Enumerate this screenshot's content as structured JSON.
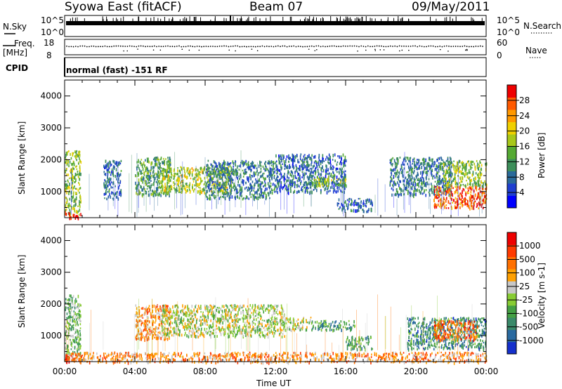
{
  "header": {
    "station": "Syowa East (fitACF)",
    "beam": "Beam 07",
    "date": "09/May/2011"
  },
  "top_panels": {
    "nsky_label": "N.Sky",
    "nsky_ticks": [
      "10^5",
      "10^0"
    ],
    "nsearch_label": "N.Search",
    "nsearch_ticks": [
      "10^5",
      "10^0"
    ],
    "freq_label_line1": "Freq.",
    "freq_label_line2": "[MHz]",
    "freq_ticks": [
      "18",
      "8"
    ],
    "nave_label": "Nave",
    "nave_ticks": [
      "60",
      "0"
    ],
    "cpid_label": "CPID",
    "cpid_text": "normal (fast) -151 RF"
  },
  "chart_data": [
    {
      "type": "heatmap",
      "title": "",
      "xlabel": "Time UT",
      "ylabel": "Slant Range [km]",
      "x_tick_labels": [
        "00:00",
        "04:00",
        "08:00",
        "12:00",
        "16:00",
        "20:00",
        "00:00"
      ],
      "x_ticks_hours": [
        0,
        4,
        8,
        12,
        16,
        20,
        24
      ],
      "y_tick_labels": [
        "1000",
        "2000",
        "3000",
        "4000"
      ],
      "y_ticks": [
        1000,
        2000,
        3000,
        4000
      ],
      "xlim": [
        0,
        24
      ],
      "ylim": [
        180,
        4500
      ],
      "colorbar_label": "Power [dB]",
      "colorbar_ticks": [
        "28",
        "24",
        "20",
        "16",
        "12",
        "8",
        "4"
      ],
      "colorbar_tick_values": [
        28,
        24,
        20,
        16,
        12,
        8,
        4
      ],
      "colorbar_colors": [
        "#0000ff",
        "#1f3fd0",
        "#2a6a9a",
        "#3d8f5a",
        "#55aa33",
        "#a8c81a",
        "#f0d000",
        "#ff9900",
        "#ff5a00",
        "#ee0000"
      ],
      "echo_regions": [
        {
          "t0": 0.0,
          "t1": 0.9,
          "r0": 300,
          "r1": 2300,
          "level": 0.5
        },
        {
          "t0": 0.0,
          "t1": 0.9,
          "r0": 180,
          "r1": 400,
          "level": 0.95
        },
        {
          "t0": 2.2,
          "t1": 3.2,
          "r0": 800,
          "r1": 2000,
          "level": 0.25
        },
        {
          "t0": 4.0,
          "t1": 6.0,
          "r0": 900,
          "r1": 2100,
          "level": 0.4
        },
        {
          "t0": 5.5,
          "t1": 9.5,
          "r0": 1000,
          "r1": 1800,
          "level": 0.55
        },
        {
          "t0": 8.0,
          "t1": 12.0,
          "r0": 800,
          "r1": 2000,
          "level": 0.3
        },
        {
          "t0": 12.0,
          "t1": 16.0,
          "r0": 1000,
          "r1": 2200,
          "level": 0.25
        },
        {
          "t0": 14.0,
          "t1": 16.0,
          "r0": 1200,
          "r1": 1500,
          "level": 0.5
        },
        {
          "t0": 15.5,
          "t1": 17.5,
          "r0": 400,
          "r1": 800,
          "level": 0.25
        },
        {
          "t0": 18.5,
          "t1": 22.0,
          "r0": 900,
          "r1": 2100,
          "level": 0.3
        },
        {
          "t0": 21.0,
          "t1": 24.0,
          "r0": 500,
          "r1": 1200,
          "level": 0.85
        },
        {
          "t0": 21.5,
          "t1": 24.0,
          "r0": 1200,
          "r1": 2000,
          "level": 0.5
        }
      ]
    },
    {
      "type": "heatmap",
      "title": "",
      "xlabel": "Time UT",
      "ylabel": "Slant Range [km]",
      "x_tick_labels": [
        "00:00",
        "04:00",
        "08:00",
        "12:00",
        "16:00",
        "20:00",
        "00:00"
      ],
      "x_ticks_hours": [
        0,
        4,
        8,
        12,
        16,
        20,
        24
      ],
      "y_tick_labels": [
        "1000",
        "2000",
        "3000",
        "4000"
      ],
      "y_ticks": [
        1000,
        2000,
        3000,
        4000
      ],
      "xlim": [
        0,
        24
      ],
      "ylim": [
        180,
        4500
      ],
      "colorbar_label": "Velocity [m s-1]",
      "colorbar_ticks": [
        "1000",
        "500",
        "100",
        "25",
        "-25",
        "-100",
        "-500",
        "-1000"
      ],
      "colorbar_tick_values": [
        1000,
        500,
        100,
        25,
        -25,
        -100,
        -500,
        -1000
      ],
      "colorbar_colors": [
        "#1530cc",
        "#2a6aa0",
        "#3a8a6a",
        "#44a044",
        "#88cc33",
        "#c8c8c8",
        "#ffa000",
        "#ff7000",
        "#ff3a00",
        "#ee0000"
      ],
      "echo_regions": [
        {
          "t0": 0.0,
          "t1": 0.9,
          "r0": 300,
          "r1": 2300,
          "level": 0.4
        },
        {
          "t0": 0.0,
          "t1": 0.9,
          "r0": 180,
          "r1": 450,
          "level": 0.85
        },
        {
          "t0": 4.0,
          "t1": 6.0,
          "r0": 900,
          "r1": 2000,
          "level": 0.7
        },
        {
          "t0": 5.5,
          "t1": 12.5,
          "r0": 1000,
          "r1": 2000,
          "level": 0.5
        },
        {
          "t0": 12.5,
          "t1": 14.0,
          "r0": 1200,
          "r1": 1600,
          "level": 0.5
        },
        {
          "t0": 14.0,
          "t1": 16.5,
          "r0": 1200,
          "r1": 1500,
          "level": 0.3
        },
        {
          "t0": 16.0,
          "t1": 17.5,
          "r0": 600,
          "r1": 1000,
          "level": 0.3
        },
        {
          "t0": 19.5,
          "t1": 24.0,
          "r0": 600,
          "r1": 1600,
          "level": 0.25
        },
        {
          "t0": 21.0,
          "t1": 23.5,
          "r0": 900,
          "r1": 1500,
          "level": 0.75
        },
        {
          "t0": 0.0,
          "t1": 24.0,
          "r0": 180,
          "r1": 500,
          "level": 0.7
        }
      ]
    }
  ]
}
